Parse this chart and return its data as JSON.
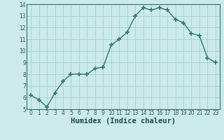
{
  "x": [
    0,
    1,
    2,
    3,
    4,
    5,
    6,
    7,
    8,
    9,
    10,
    11,
    12,
    13,
    14,
    15,
    16,
    17,
    18,
    19,
    20,
    21,
    22,
    23
  ],
  "y": [
    6.2,
    5.8,
    5.2,
    6.4,
    7.4,
    8.0,
    8.0,
    8.0,
    8.5,
    8.6,
    10.5,
    11.0,
    11.6,
    13.0,
    13.7,
    13.5,
    13.7,
    13.5,
    12.7,
    12.4,
    11.5,
    11.3,
    9.4,
    9.0
  ],
  "line_color": "#2a7a6a",
  "marker": "+",
  "markersize": 4,
  "markeredgewidth": 1.2,
  "linewidth": 1.0,
  "bg_color": "#cceaea",
  "grid_color": "#aacece",
  "xlabel": "Humidex (Indice chaleur)",
  "xlim": [
    -0.5,
    23.5
  ],
  "ylim": [
    5,
    14
  ],
  "yticks": [
    5,
    6,
    7,
    8,
    9,
    10,
    11,
    12,
    13,
    14
  ],
  "xticks": [
    0,
    1,
    2,
    3,
    4,
    5,
    6,
    7,
    8,
    9,
    10,
    11,
    12,
    13,
    14,
    15,
    16,
    17,
    18,
    19,
    20,
    21,
    22,
    23
  ],
  "tick_fontsize": 5.5,
  "xlabel_fontsize": 7.5
}
